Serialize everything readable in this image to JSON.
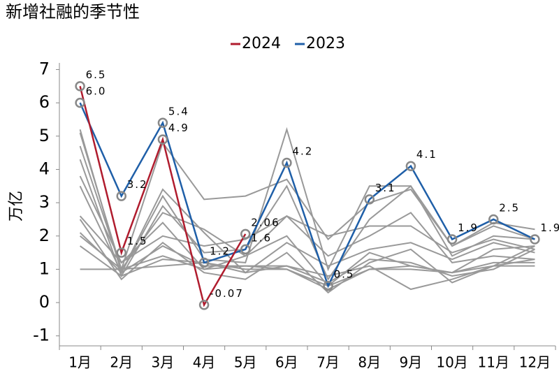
{
  "chart_data": {
    "type": "line",
    "title": "新增社融的季节性",
    "y_label": "万亿",
    "categories": [
      "1月",
      "2月",
      "3月",
      "4月",
      "5月",
      "6月",
      "7月",
      "8月",
      "9月",
      "10月",
      "11月",
      "12月"
    ],
    "ylim": [
      -1.3,
      7.2
    ],
    "yticks": [
      -1,
      0,
      1,
      2,
      3,
      4,
      5,
      6,
      7
    ],
    "legend": "top",
    "series": [
      {
        "color": "#999999",
        "values": [
          5.2,
          0.9,
          3.2,
          1.3,
          1.2,
          5.2,
          1.0,
          3.5,
          3.5,
          1.4,
          2.0,
          1.9
        ]
      },
      {
        "color": "#999999",
        "values": [
          5.1,
          1.0,
          4.8,
          3.1,
          3.2,
          3.7,
          1.9,
          3.0,
          3.4,
          1.7,
          2.3,
          1.9
        ]
      },
      {
        "color": "#999999",
        "values": [
          4.7,
          1.0,
          2.7,
          2.2,
          1.4,
          2.6,
          2.0,
          2.3,
          2.3,
          1.5,
          1.9,
          1.6
        ]
      },
      {
        "color": "#999999",
        "values": [
          4.3,
          0.8,
          2.9,
          1.5,
          1.6,
          3.5,
          0.7,
          2.5,
          3.5,
          1.7,
          2.4,
          2.2
        ]
      },
      {
        "color": "#999999",
        "values": [
          3.8,
          1.2,
          2.4,
          1.0,
          1.4,
          2.0,
          0.5,
          1.5,
          1.1,
          0.9,
          1.6,
          1.7
        ]
      },
      {
        "color": "#999999",
        "values": [
          3.5,
          0.9,
          3.4,
          2.1,
          0.9,
          1.8,
          1.1,
          1.6,
          1.8,
          1.3,
          1.8,
          1.5
        ]
      },
      {
        "color": "#999999",
        "values": [
          2.6,
          1.2,
          2.0,
          1.7,
          1.9,
          2.6,
          1.4,
          2.0,
          2.7,
          1.2,
          1.4,
          1.3
        ]
      },
      {
        "color": "#999999",
        "values": [
          2.5,
          0.7,
          1.8,
          0.9,
          0.7,
          1.5,
          0.3,
          1.2,
          1.6,
          0.6,
          1.1,
          1.7
        ]
      },
      {
        "color": "#999999",
        "values": [
          2.1,
          0.9,
          1.7,
          1.1,
          1.1,
          1.1,
          0.6,
          1.3,
          1.2,
          0.8,
          1.0,
          1.6
        ]
      },
      {
        "color": "#999999",
        "values": [
          2.0,
          1.0,
          1.4,
          1.0,
          1.1,
          1.0,
          0.4,
          1.0,
          1.0,
          0.9,
          1.2,
          1.2
        ]
      },
      {
        "color": "#999999",
        "values": [
          1.7,
          0.8,
          1.3,
          1.2,
          0.9,
          1.1,
          0.8,
          1.1,
          0.4,
          0.7,
          1.1,
          1.3
        ]
      },
      {
        "color": "#999999",
        "values": [
          1.0,
          1.0,
          1.1,
          1.2,
          1.0,
          1.0,
          0.5,
          1.0,
          1.1,
          0.9,
          1.1,
          1.1
        ]
      },
      {
        "name": "2023",
        "color": "#1f5fa8",
        "markers": true,
        "values": [
          6.0,
          3.2,
          5.4,
          1.2,
          1.6,
          4.2,
          0.5,
          3.1,
          4.1,
          1.9,
          2.5,
          1.9
        ],
        "value_labels": [
          "6.0",
          "3.2",
          "5.4",
          "1.2",
          "1.6",
          "4.2",
          "0.5",
          "3.1",
          "4.1",
          "1.9",
          "2.5",
          "1.9"
        ]
      },
      {
        "name": "2024",
        "color": "#b01c2e",
        "markers": true,
        "values": [
          6.5,
          1.5,
          4.9,
          -0.07,
          2.06,
          null,
          null,
          null,
          null,
          null,
          null,
          null
        ],
        "value_labels": [
          "6.5",
          "1.5",
          "4.9",
          "-0.07",
          "2.06",
          null,
          null,
          null,
          null,
          null,
          null,
          null
        ]
      }
    ]
  }
}
